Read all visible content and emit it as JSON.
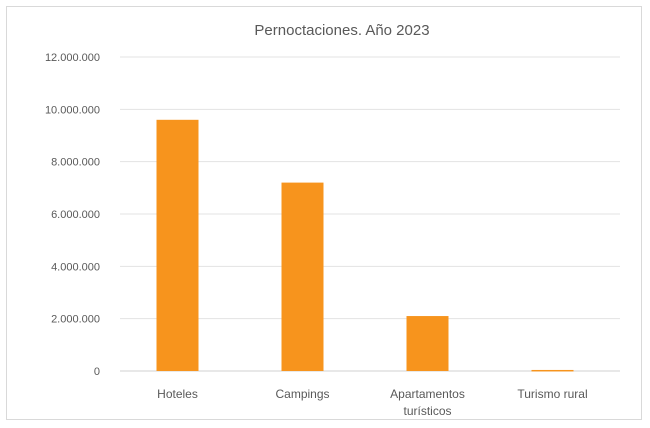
{
  "chart_data": {
    "type": "bar",
    "title": "Pernoctaciones. Año 2023",
    "xlabel": "",
    "ylabel": "",
    "categories": [
      [
        "Hoteles"
      ],
      [
        "Campings"
      ],
      [
        "Apartamentos",
        "turísticos"
      ],
      [
        "Turismo rural"
      ]
    ],
    "values": [
      9600000,
      7200000,
      2100000,
      40000
    ],
    "ylim": [
      0,
      12000000
    ],
    "yticks": [
      0,
      2000000,
      4000000,
      6000000,
      8000000,
      10000000,
      12000000
    ],
    "ytick_labels": [
      "0",
      "2.000.000",
      "4.000.000",
      "6.000.000",
      "8.000.000",
      "10.000.000",
      "12.000.000"
    ],
    "grid": true,
    "legend": "none",
    "bar_color": "#F7941D",
    "grid_color": "#e3e3e3",
    "text_color": "#595959"
  }
}
